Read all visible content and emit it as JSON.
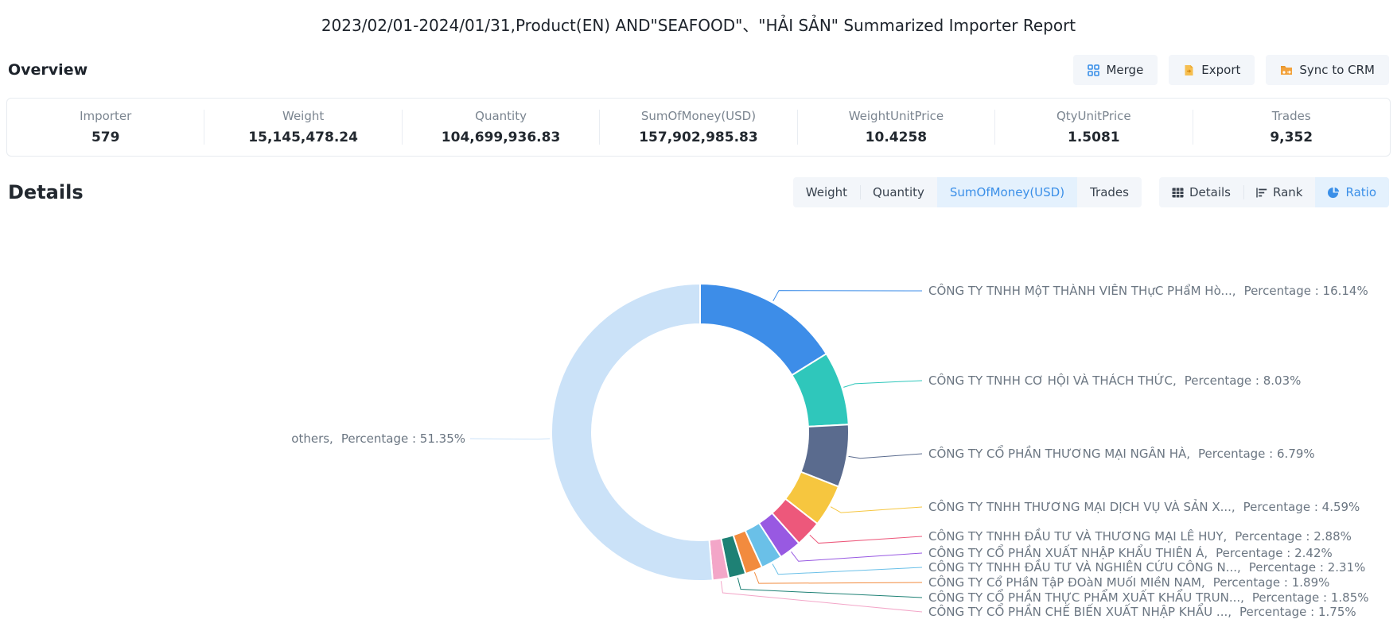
{
  "title": "2023/02/01-2024/01/31,Product(EN) AND\"SEAFOOD\"、\"HẢI SẢN\" Summarized Importer Report",
  "overview": {
    "heading": "Overview",
    "buttons": [
      {
        "label": "Merge",
        "icon": "merge-grid-icon",
        "icon_color": "#3a8fe8"
      },
      {
        "label": "Export",
        "icon": "export-file-icon",
        "icon_color": "#f6be4f"
      },
      {
        "label": "Sync to CRM",
        "icon": "sync-folder-icon",
        "icon_color": "#f2a23c"
      }
    ],
    "stats": [
      {
        "label": "Importer",
        "value": "579"
      },
      {
        "label": "Weight",
        "value": "15,145,478.24"
      },
      {
        "label": "Quantity",
        "value": "104,699,936.83"
      },
      {
        "label": "SumOfMoney(USD)",
        "value": "157,902,985.83"
      },
      {
        "label": "WeightUnitPrice",
        "value": "10.4258"
      },
      {
        "label": "QtyUnitPrice",
        "value": "1.5081"
      },
      {
        "label": "Trades",
        "value": "9,352"
      }
    ]
  },
  "details": {
    "heading": "Details",
    "metric_tabs": [
      {
        "label": "Weight",
        "active": false
      },
      {
        "label": "Quantity",
        "active": false
      },
      {
        "label": "SumOfMoney(USD)",
        "active": true
      },
      {
        "label": "Trades",
        "active": false
      }
    ],
    "view_tabs": [
      {
        "label": "Details",
        "icon": "table-icon",
        "active": false
      },
      {
        "label": "Rank",
        "icon": "rank-bars-icon",
        "active": false
      },
      {
        "label": "Ratio",
        "icon": "pie-chart-icon",
        "active": true
      }
    ]
  },
  "chart_data": {
    "type": "pie",
    "title": "SumOfMoney(USD) ratio by importer",
    "donut": true,
    "legend_position": "none",
    "label_separator": ",",
    "percentage_prefix": "Percentage : ",
    "series": [
      {
        "name": "CÔNG TY TNHH MộT THÀNH VIÊN THựC PHẩM Hò...",
        "percentage": 16.14,
        "color": "#3D8DE8"
      },
      {
        "name": "CÔNG TY TNHH CƠ HỘI VÀ THÁCH THỨC",
        "percentage": 8.03,
        "color": "#2FC7BB"
      },
      {
        "name": "CÔNG TY CỔ PHẦN THƯƠNG MẠI NGÂN HÀ",
        "percentage": 6.79,
        "color": "#5A6B8E"
      },
      {
        "name": "CÔNG TY TNHH THƯƠNG MẠI DỊCH VỤ VÀ SẢN X...",
        "percentage": 4.59,
        "color": "#F6C63F"
      },
      {
        "name": "CÔNG TY TNHH ĐẦU TƯ VÀ THƯƠNG MẠI LÊ HUY",
        "percentage": 2.88,
        "color": "#ED587B"
      },
      {
        "name": "CÔNG TY CỔ PHẦN XUẤT NHẬP KHẨU THIÊN Á",
        "percentage": 2.42,
        "color": "#9859E2"
      },
      {
        "name": "CÔNG TY TNHH ĐẦU TƯ VÀ NGHIÊN CỨU CÔNG N...",
        "percentage": 2.31,
        "color": "#6AC0E8"
      },
      {
        "name": "CÔNG TY Cổ PHầN TậP ĐOàN MUốI MIềN NAM",
        "percentage": 1.89,
        "color": "#F28B3E"
      },
      {
        "name": "CÔNG TY CỔ PHẦN THỰC PHẨM XUẤT KHẨU TRUN...",
        "percentage": 1.85,
        "color": "#1E8175"
      },
      {
        "name": "CÔNG TY CỔ PHẦN CHẾ BIẾN XUẤT NHẬP KHẨU ...",
        "percentage": 1.75,
        "color": "#F3A6C8"
      },
      {
        "name": "others",
        "percentage": 51.35,
        "color": "#CBE2F8"
      }
    ]
  }
}
